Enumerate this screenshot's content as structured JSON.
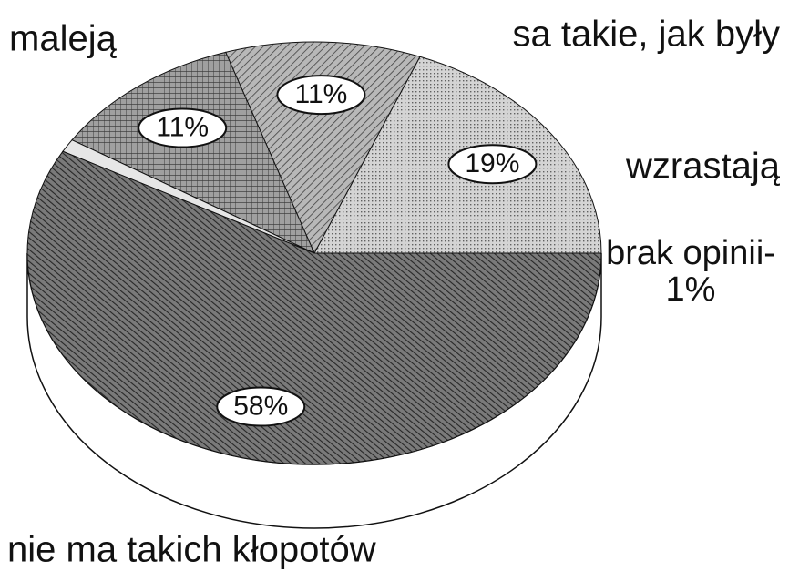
{
  "chart_data": {
    "type": "pie",
    "categories": [
      "maleją",
      "sa takie, jak były",
      "wzrastają",
      "brak opinii-1%",
      "nie ma takich kłopotów"
    ],
    "values": [
      19,
      11,
      11,
      1,
      58
    ],
    "value_labels": [
      "19%",
      "11%",
      "11%",
      null,
      "58%"
    ],
    "colors": [
      "#d4d4d4",
      "#b8b8b8",
      "#a0a0a0",
      "#e6e6e6",
      "#7a7a7a"
    ]
  }
}
